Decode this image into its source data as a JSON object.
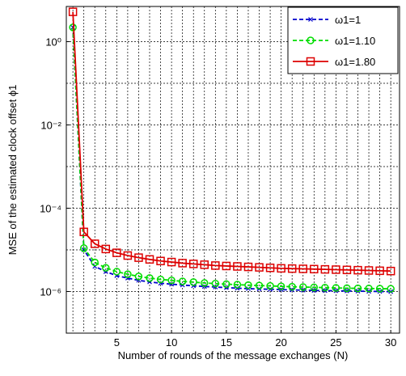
{
  "chart_data": {
    "type": "line",
    "xlabel": "Number of rounds of the message exchanges (N)",
    "ylabel": "MSE of the estimated clock offset ϕ1",
    "x": [
      1,
      2,
      3,
      4,
      5,
      6,
      7,
      8,
      9,
      10,
      11,
      12,
      13,
      14,
      15,
      16,
      17,
      18,
      19,
      20,
      21,
      22,
      23,
      24,
      25,
      26,
      27,
      28,
      29,
      30
    ],
    "series": [
      {
        "name": "ω1=1",
        "color": "#0000cc",
        "dash": true,
        "marker": "x",
        "values": [
          2.2,
          1e-05,
          4e-06,
          3e-06,
          2.4e-06,
          2.1e-06,
          1.85e-06,
          1.7e-06,
          1.58e-06,
          1.5e-06,
          1.43e-06,
          1.37e-06,
          1.32e-06,
          1.28e-06,
          1.24e-06,
          1.2e-06,
          1.17e-06,
          1.15e-06,
          1.13e-06,
          1.11e-06,
          1.09e-06,
          1.08e-06,
          1.06e-06,
          1.05e-06,
          1.04e-06,
          1.03e-06,
          1.02e-06,
          1.01e-06,
          1e-06,
          9.9e-07
        ]
      },
      {
        "name": "ω1=1.10",
        "color": "#00dd00",
        "dash": true,
        "marker": "circle",
        "values": [
          2.2,
          1.1e-05,
          5e-06,
          3.7e-06,
          3e-06,
          2.6e-06,
          2.3e-06,
          2.1e-06,
          1.95e-06,
          1.85e-06,
          1.75e-06,
          1.68e-06,
          1.6e-06,
          1.55e-06,
          1.5e-06,
          1.46e-06,
          1.42e-06,
          1.39e-06,
          1.36e-06,
          1.33e-06,
          1.3e-06,
          1.28e-06,
          1.26e-06,
          1.24e-06,
          1.22e-06,
          1.2e-06,
          1.19e-06,
          1.18e-06,
          1.17e-06,
          1.16e-06
        ]
      },
      {
        "name": "ω1=1.80",
        "color": "#dd0000",
        "dash": false,
        "marker": "square",
        "values": [
          5.2,
          2.7e-05,
          1.4e-05,
          1.05e-05,
          8.5e-06,
          7.3e-06,
          6.5e-06,
          5.9e-06,
          5.4e-06,
          5.1e-06,
          4.8e-06,
          4.6e-06,
          4.4e-06,
          4.2e-06,
          4.1e-06,
          4e-06,
          3.9e-06,
          3.8e-06,
          3.7e-06,
          3.6e-06,
          3.55e-06,
          3.5e-06,
          3.45e-06,
          3.4e-06,
          3.35e-06,
          3.3e-06,
          3.25e-06,
          3.2e-06,
          3.15e-06,
          3.1e-06
        ]
      }
    ],
    "xlim": [
      0.4,
      30.8
    ],
    "xticks": [
      5,
      10,
      15,
      20,
      25,
      30
    ],
    "x_minor_ticks": [
      1,
      2,
      3,
      4,
      6,
      7,
      8,
      9,
      11,
      12,
      13,
      14,
      16,
      17,
      18,
      19,
      21,
      22,
      23,
      24,
      26,
      27,
      28,
      29
    ],
    "ylim": [
      1e-07,
      7
    ],
    "ylog": true,
    "yticks": [
      {
        "value": 1,
        "label": "10⁰"
      },
      {
        "value": 0.01,
        "label": "10⁻²"
      },
      {
        "value": 0.0001,
        "label": "10⁻⁴"
      },
      {
        "value": 1e-06,
        "label": "10⁻⁶"
      }
    ],
    "y_minor_ticks": [
      0.1,
      0.001,
      1e-05,
      1e-07
    ],
    "grid": true,
    "legend": "upper right"
  }
}
